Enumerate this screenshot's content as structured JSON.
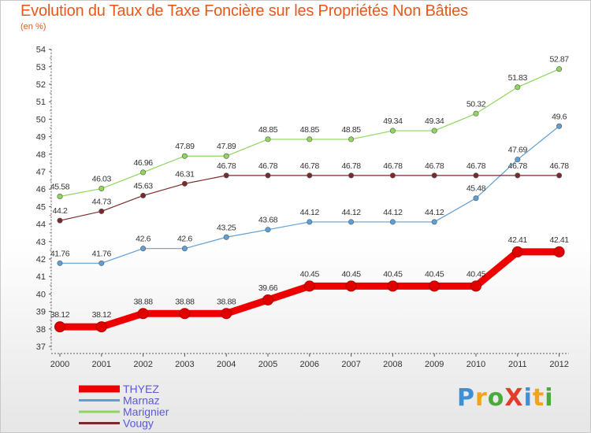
{
  "title": "Evolution du Taux de Taxe Foncière sur les Propriétés Non Bâties",
  "subtitle": "(en %)",
  "logo": "ProXiti",
  "chart_data": {
    "type": "line",
    "title": "Evolution du Taux de Taxe Foncière sur les Propriétés Non Bâties",
    "ylabel": "(en %)",
    "xlabel": "",
    "categories": [
      "2000",
      "2001",
      "2002",
      "2003",
      "2004",
      "2005",
      "2006",
      "2007",
      "2008",
      "2009",
      "2010",
      "2011",
      "2012"
    ],
    "ylim": [
      37,
      54
    ],
    "yticks": [
      37,
      38,
      39,
      40,
      41,
      42,
      43,
      44,
      45,
      46,
      47,
      48,
      49,
      50,
      51,
      52,
      53,
      54
    ],
    "grid": false,
    "legend_position": "bottom-left",
    "series": [
      {
        "name": "THYEZ",
        "color": "#ee0000",
        "values": [
          38.12,
          38.12,
          38.88,
          38.88,
          38.88,
          39.66,
          40.45,
          40.45,
          40.45,
          40.45,
          40.45,
          42.41,
          42.41
        ],
        "labels": [
          "38.12",
          "38.12",
          "38.88",
          "38.88",
          "38.88",
          "39.66",
          "40.45",
          "40.45",
          "40.45",
          "40.45",
          "40.45",
          "42.41",
          "42.41"
        ]
      },
      {
        "name": "Marnaz",
        "color": "#5e9fd6",
        "values": [
          41.76,
          41.76,
          42.6,
          42.6,
          43.25,
          43.68,
          44.12,
          44.12,
          44.12,
          44.12,
          45.48,
          47.69,
          49.6
        ],
        "labels": [
          "41.76",
          "41.76",
          "42.6",
          "42.6",
          "43.25",
          "43.68",
          "44.12",
          "44.12",
          "44.12",
          "44.12",
          "45.48",
          "47.69",
          "49.6"
        ]
      },
      {
        "name": "Marignier",
        "color": "#8fd65a",
        "values": [
          45.58,
          46.03,
          46.96,
          47.89,
          47.89,
          48.85,
          48.85,
          48.85,
          49.34,
          49.34,
          50.32,
          51.83,
          52.87
        ],
        "labels": [
          "45.58",
          "46.03",
          "46.96",
          "47.89",
          "47.89",
          "48.85",
          "48.85",
          "48.85",
          "49.34",
          "49.34",
          "50.32",
          "51.83",
          "52.87"
        ]
      },
      {
        "name": "Vougy",
        "color": "#7a2a2a",
        "values": [
          44.2,
          44.73,
          45.63,
          46.31,
          46.78,
          46.78,
          46.78,
          46.78,
          46.78,
          46.78,
          46.78,
          46.78,
          46.78
        ],
        "labels": [
          "44.2",
          "44.73",
          "45.63",
          "46.31",
          "46.78",
          "46.78",
          "46.78",
          "46.78",
          "46.78",
          "46.78",
          "46.78",
          "46.78",
          "46.78"
        ]
      }
    ]
  }
}
